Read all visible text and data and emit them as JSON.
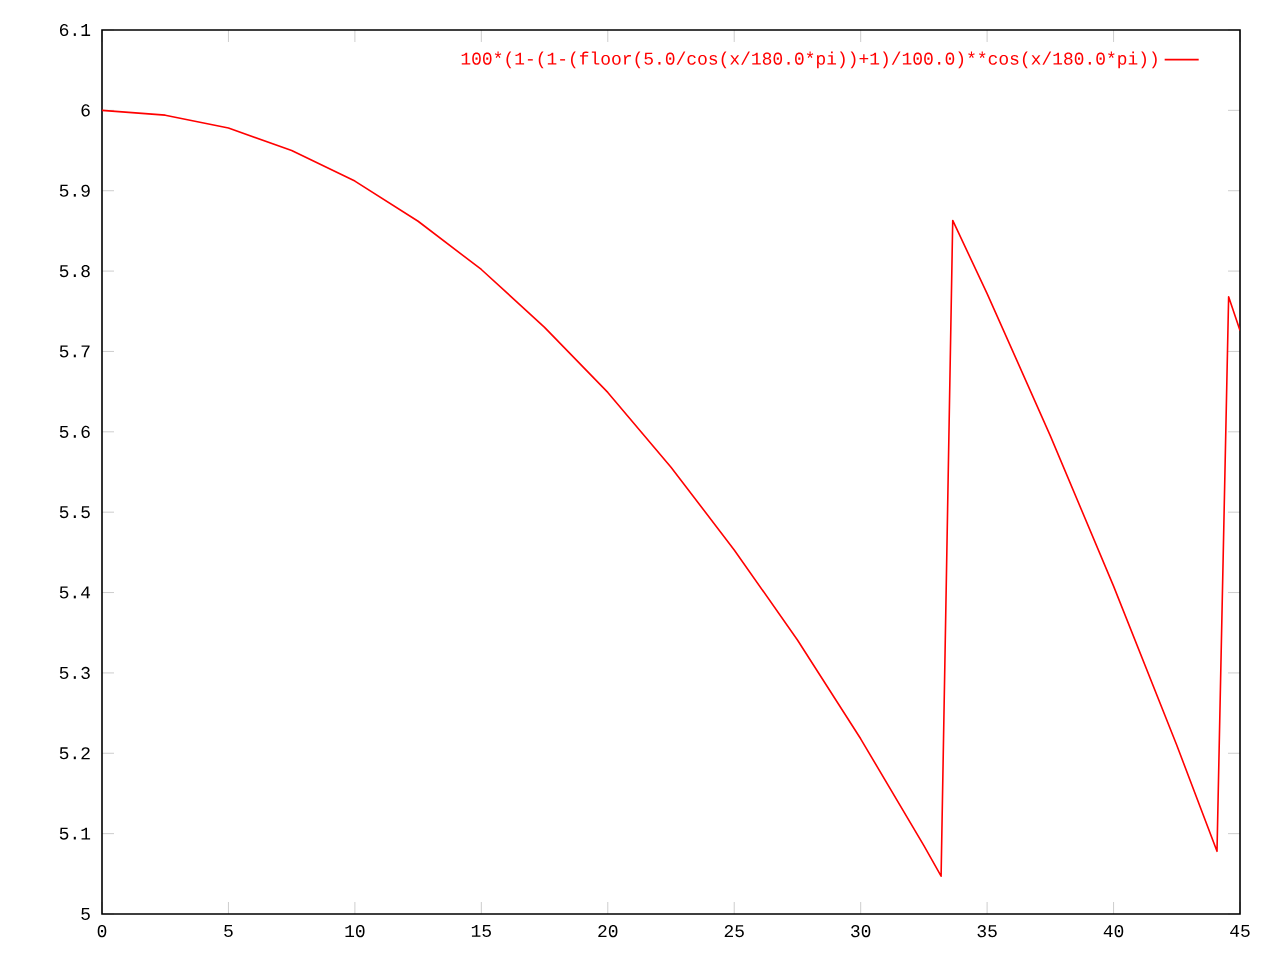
{
  "chart_data": {
    "type": "line",
    "x": [
      0,
      2.5,
      5,
      7.5,
      10,
      12.5,
      15,
      17.5,
      20,
      22.5,
      25,
      27.5,
      30,
      32.5,
      33.18,
      33.64,
      35,
      37.5,
      40,
      42.5,
      44.09,
      44.55,
      45
    ],
    "series": [
      {
        "name": "100*(1-(1-(floor(5.0/cos(x/180.0*pi))+1)/100.0)**cos(x/180.0*pi))",
        "color": "#ff0000",
        "values": [
          6.0,
          5.994,
          5.978,
          5.95,
          5.912,
          5.862,
          5.802,
          5.73,
          5.649,
          5.556,
          5.453,
          5.341,
          5.218,
          5.085,
          5.047,
          5.863,
          5.772,
          5.595,
          5.408,
          5.21,
          5.078,
          5.768,
          5.726
        ]
      }
    ],
    "xlim": [
      0,
      45
    ],
    "xticks": [
      0,
      5,
      10,
      15,
      20,
      25,
      30,
      35,
      40,
      45
    ],
    "ylim": [
      5,
      6.1
    ],
    "yticks": [
      5,
      5.1,
      5.2,
      5.3,
      5.4,
      5.5,
      5.6,
      5.7,
      5.8,
      5.9,
      6,
      6.1
    ],
    "grid": false,
    "legend": "top right",
    "marker": "none",
    "line_style": "solid"
  }
}
